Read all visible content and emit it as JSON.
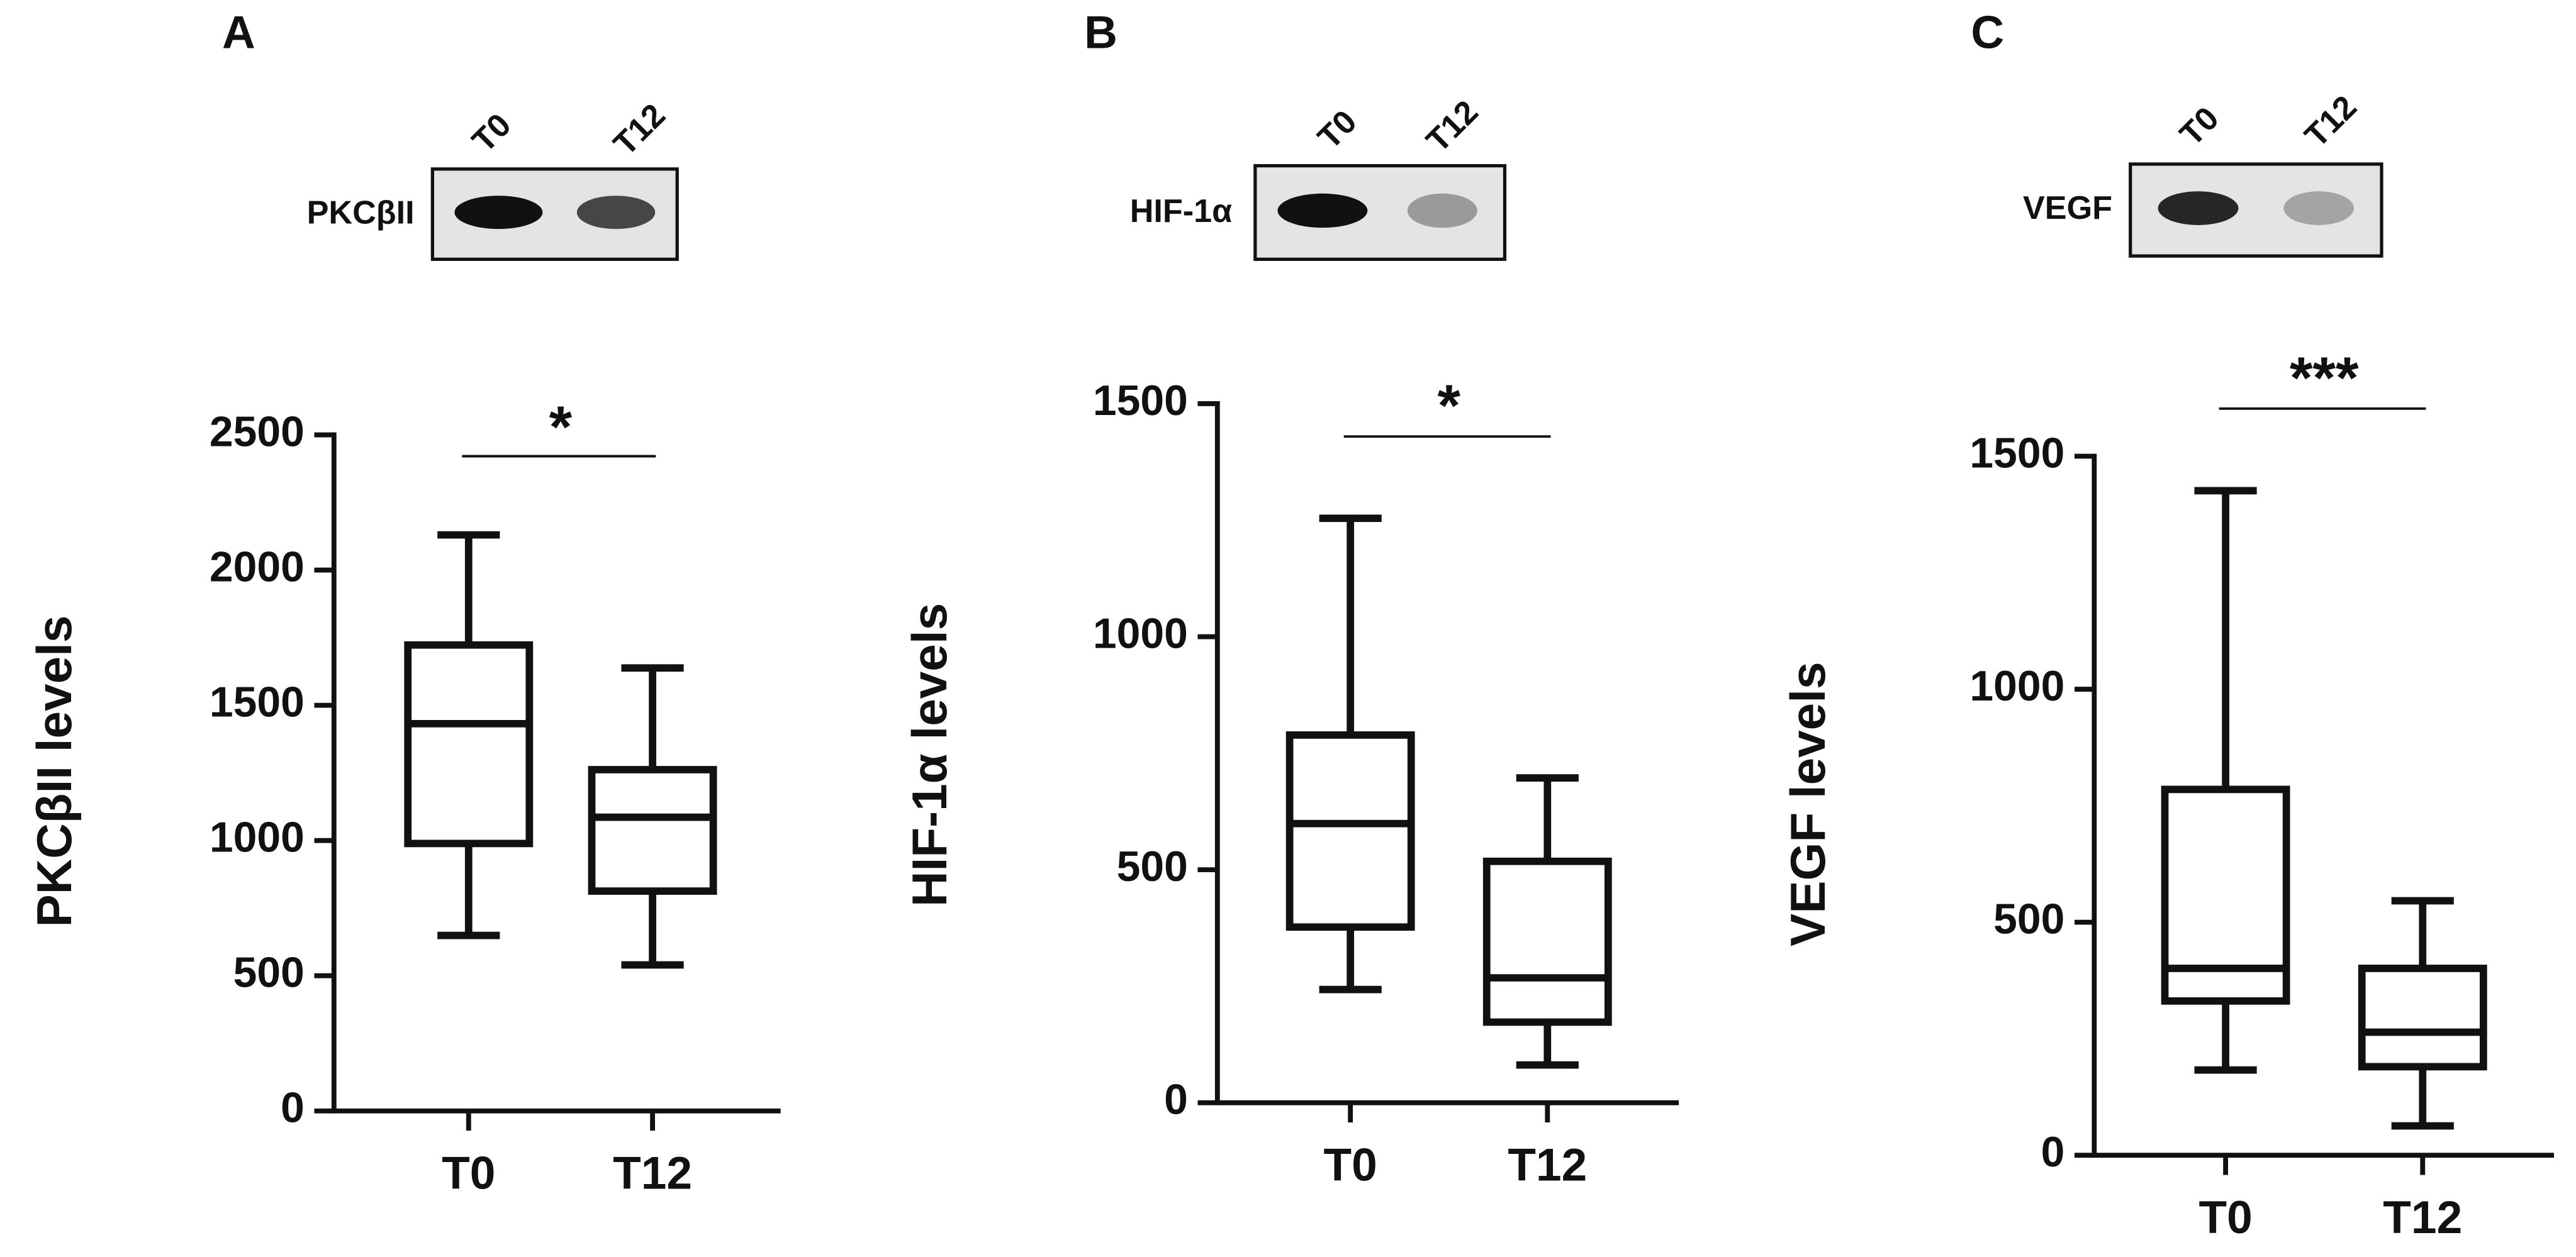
{
  "chart_data": [
    {
      "type": "box",
      "panel": "A",
      "blot_label": "PKCβII",
      "blot_lanes": [
        "T0",
        "T12"
      ],
      "y_label": "PKCβII levels",
      "categories": [
        "T0",
        "T12"
      ],
      "boxes": [
        {
          "min": 649,
          "q1": 989,
          "median": 1432,
          "q3": 1723,
          "max": 2130
        },
        {
          "min": 540,
          "q1": 813,
          "median": 1086,
          "q3": 1262,
          "max": 1638
        }
      ],
      "ylim": [
        0,
        2500
      ],
      "yticks": [
        0,
        500,
        1000,
        1500,
        2000,
        2500
      ],
      "annotation": "*",
      "color": "#111111"
    },
    {
      "type": "box",
      "panel": "B",
      "blot_label": "HIF-1α",
      "blot_lanes": [
        "T0",
        "T12"
      ],
      "y_label": "HIF-1α levels",
      "categories": [
        "T0",
        "T12"
      ],
      "boxes": [
        {
          "min": 243,
          "q1": 377,
          "median": 599,
          "q3": 789,
          "max": 1254
        },
        {
          "min": 81,
          "q1": 173,
          "median": 268,
          "q3": 518,
          "max": 697
        }
      ],
      "ylim": [
        0,
        1500
      ],
      "yticks": [
        0,
        500,
        1000,
        1500
      ],
      "annotation": "*",
      "color": "#111111"
    },
    {
      "type": "box",
      "panel": "C",
      "blot_label": "VEGF",
      "blot_lanes": [
        "T0",
        "T12"
      ],
      "y_label": "VEGF levels",
      "categories": [
        "T0",
        "T12"
      ],
      "boxes": [
        {
          "min": 183,
          "q1": 331,
          "median": 401,
          "q3": 785,
          "max": 1426
        },
        {
          "min": 63,
          "q1": 190,
          "median": 264,
          "q3": 401,
          "max": 546
        }
      ],
      "ylim": [
        0,
        1500
      ],
      "yticks": [
        0,
        500,
        1000,
        1500
      ],
      "annotation": "***",
      "color": "#111111"
    }
  ]
}
